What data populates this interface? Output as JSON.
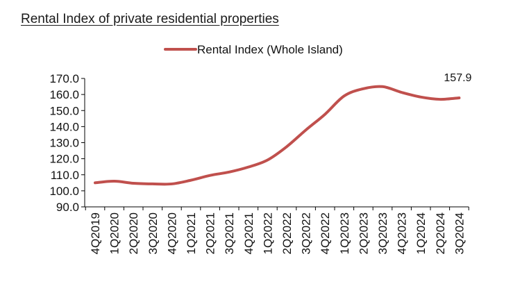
{
  "heading": "Rental Index of private residential properties",
  "chart_data": {
    "type": "line",
    "title": "",
    "xlabel": "",
    "ylabel": "",
    "categories": [
      "4Q2019",
      "1Q2020",
      "2Q2020",
      "3Q2020",
      "4Q2020",
      "1Q2021",
      "2Q2021",
      "3Q2021",
      "4Q2021",
      "1Q2022",
      "2Q2022",
      "3Q2022",
      "4Q2022",
      "1Q2023",
      "2Q2023",
      "3Q2023",
      "4Q2023",
      "1Q2024",
      "2Q2024",
      "3Q2024"
    ],
    "series": [
      {
        "name": "Rental Index (Whole Island)",
        "color": "#c0504d",
        "values": [
          105.0,
          106.0,
          104.7,
          104.3,
          104.3,
          106.6,
          109.6,
          111.7,
          114.8,
          119.2,
          127.5,
          137.9,
          147.7,
          159.1,
          163.6,
          164.9,
          161.3,
          158.4,
          157.0,
          157.9
        ]
      }
    ],
    "ylim": [
      90,
      170
    ],
    "yticks": [
      "170.0",
      "160.0",
      "150.0",
      "140.0",
      "130.0",
      "120.0",
      "110.0",
      "100.0",
      "90.0"
    ],
    "ytick_values": [
      170,
      160,
      150,
      140,
      130,
      120,
      110,
      100,
      90
    ],
    "data_labels": [
      {
        "index": 19,
        "text": "157.9"
      }
    ],
    "legend_position": "top-center",
    "grid": false
  }
}
